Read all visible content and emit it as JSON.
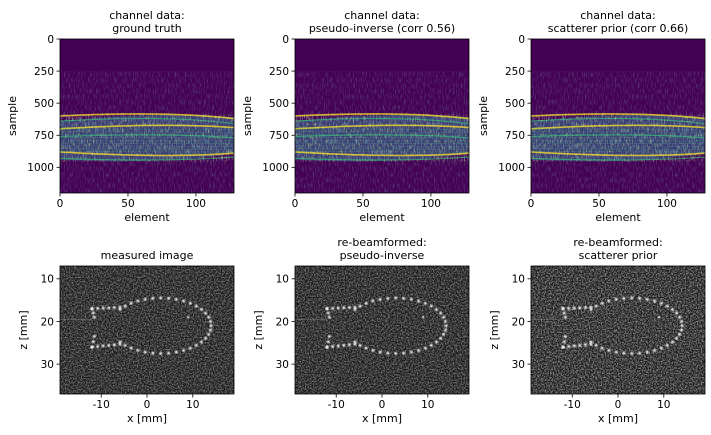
{
  "figure": {
    "colors": {
      "viridis_dark": "#440154",
      "viridis_blue": "#31688e",
      "viridis_teal": "#35b779",
      "viridis_yellow": "#fde725",
      "grayscale_bg": "#141414"
    }
  },
  "chart_data": [
    {
      "type": "heatmap",
      "title": [
        "channel data:",
        "ground truth"
      ],
      "xlabel": "element",
      "ylabel": "sample",
      "xlim": [
        0,
        128
      ],
      "ylim": [
        1200,
        0
      ],
      "xticks": [
        0,
        50,
        100
      ],
      "yticks": [
        0,
        250,
        500,
        750,
        1000
      ],
      "colormap": "viridis",
      "bands": [
        {
          "name": "upper layer",
          "sample_center": 640,
          "sample_halfwidth": 45
        },
        {
          "name": "lower layer",
          "sample_center": 920,
          "sample_halfwidth": 40
        }
      ]
    },
    {
      "type": "heatmap",
      "title": [
        "channel data:",
        "pseudo-inverse (corr 0.56)"
      ],
      "xlabel": "element",
      "ylabel": "sample",
      "xlim": [
        0,
        128
      ],
      "ylim": [
        1200,
        0
      ],
      "xticks": [
        0,
        50,
        100
      ],
      "yticks": [
        0,
        250,
        500,
        750,
        1000
      ],
      "colormap": "viridis",
      "correlation": 0.56
    },
    {
      "type": "heatmap",
      "title": [
        "channel data:",
        "scatterer prior (corr 0.66)"
      ],
      "xlabel": "element",
      "ylabel": "sample",
      "xlim": [
        0,
        128
      ],
      "ylim": [
        1200,
        0
      ],
      "xticks": [
        0,
        50,
        100
      ],
      "yticks": [
        0,
        250,
        500,
        750,
        1000
      ],
      "colormap": "viridis",
      "correlation": 0.66
    },
    {
      "type": "heatmap",
      "title": [
        "measured image"
      ],
      "xlabel": "x [mm]",
      "ylabel": "z [mm]",
      "xlim": [
        -19,
        19
      ],
      "ylim": [
        37,
        7
      ],
      "xticks": [
        -10,
        0,
        10
      ],
      "yticks": [
        10,
        20,
        30
      ],
      "colormap": "gray",
      "fish_outline": {
        "body_center_mm": [
          3,
          21
        ],
        "body_radius_mm": [
          11,
          6.5
        ],
        "tail_tip_mm": [
          -11,
          21
        ],
        "tail_top_mm": [
          -12,
          17
        ],
        "tail_bottom_mm": [
          -12,
          26
        ]
      }
    },
    {
      "type": "heatmap",
      "title": [
        "re-beamformed:",
        "pseudo-inverse"
      ],
      "xlabel": "x [mm]",
      "ylabel": "z [mm]",
      "xlim": [
        -19,
        19
      ],
      "ylim": [
        37,
        7
      ],
      "xticks": [
        -10,
        0,
        10
      ],
      "yticks": [
        10,
        20,
        30
      ],
      "colormap": "gray"
    },
    {
      "type": "heatmap",
      "title": [
        "re-beamformed:",
        "scatterer prior"
      ],
      "xlabel": "x [mm]",
      "ylabel": "z [mm]",
      "xlim": [
        -19,
        19
      ],
      "ylim": [
        37,
        7
      ],
      "xticks": [
        -10,
        0,
        10
      ],
      "yticks": [
        10,
        20,
        30
      ],
      "colormap": "gray"
    }
  ]
}
